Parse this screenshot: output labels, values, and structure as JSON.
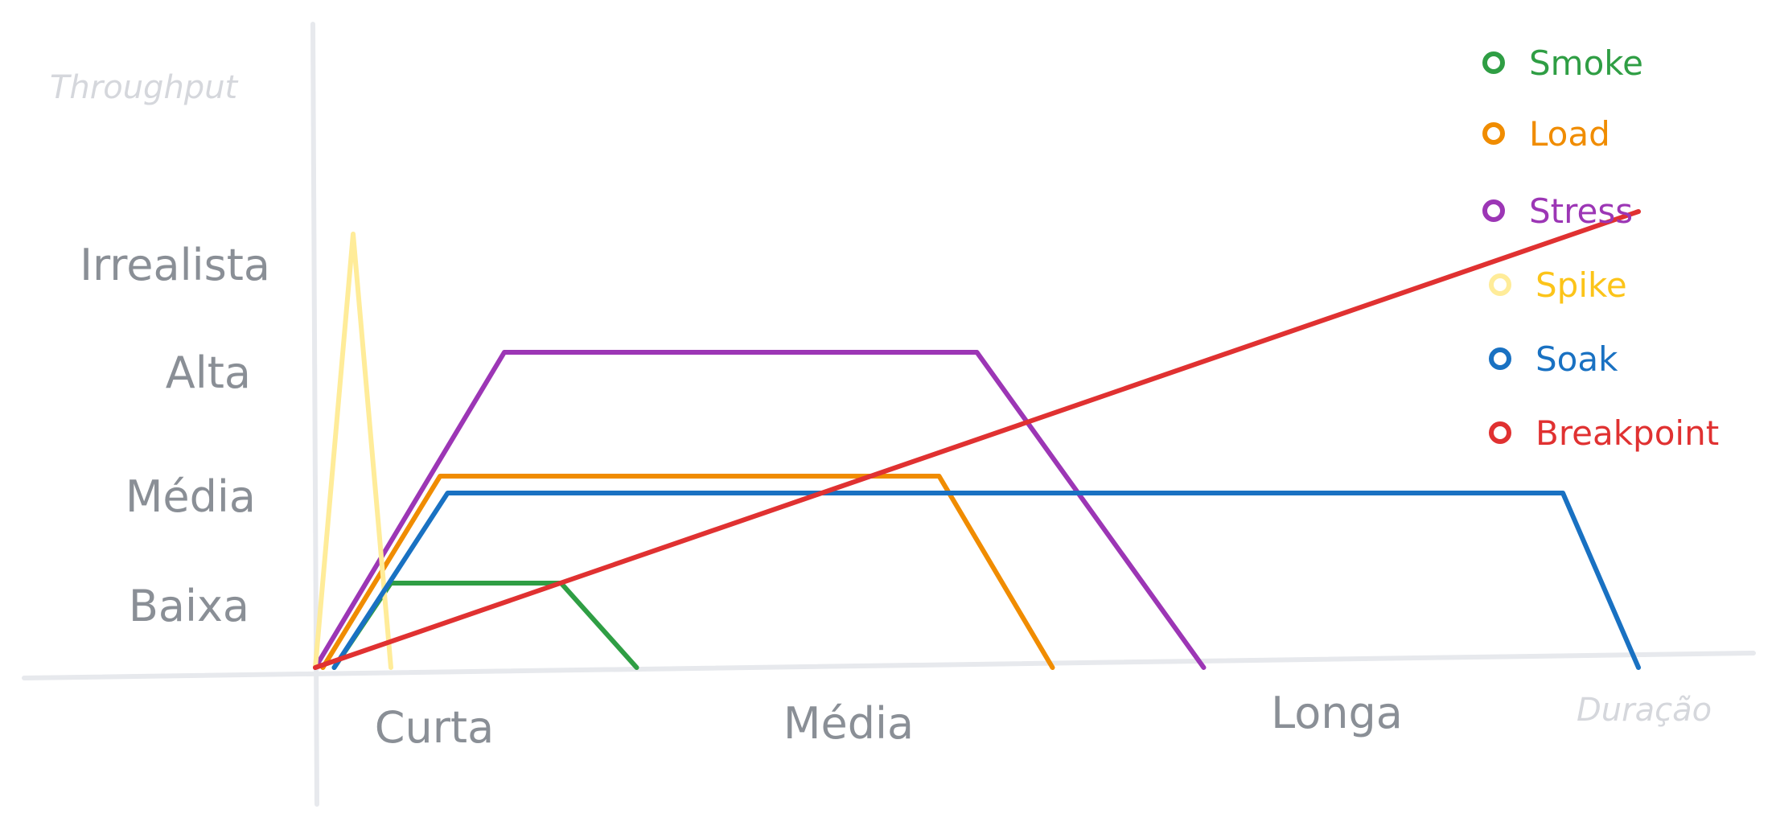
{
  "chart_data": {
    "type": "line",
    "xlabel": "Duração",
    "ylabel": "Throughput",
    "x_categories": [
      "Curta",
      "Média",
      "Longa"
    ],
    "y_categories": [
      "Baixa",
      "Média",
      "Alta",
      "Irrealista"
    ],
    "xlim": [
      0,
      3.6
    ],
    "ylim": [
      0,
      4.2
    ],
    "grid": false,
    "legend_position": "top-right",
    "series": [
      {
        "name": "Smoke",
        "color": "#2f9e44",
        "points": [
          [
            0.05,
            0
          ],
          [
            0.2,
            0.75
          ],
          [
            0.65,
            0.75
          ],
          [
            0.85,
            0
          ]
        ]
      },
      {
        "name": "Load",
        "color": "#f08c00",
        "points": [
          [
            0.02,
            0
          ],
          [
            0.33,
            1.7
          ],
          [
            1.65,
            1.7
          ],
          [
            1.95,
            0
          ]
        ]
      },
      {
        "name": "Stress",
        "color": "#9c36b5",
        "points": [
          [
            0.0,
            0
          ],
          [
            0.5,
            2.8
          ],
          [
            1.75,
            2.8
          ],
          [
            2.35,
            0
          ]
        ]
      },
      {
        "name": "Spike",
        "color": "#ffec99",
        "points": [
          [
            0.0,
            0
          ],
          [
            0.1,
            3.85
          ],
          [
            0.2,
            0
          ]
        ]
      },
      {
        "name": "Soak",
        "color": "#1971c2",
        "points": [
          [
            0.05,
            0
          ],
          [
            0.35,
            1.55
          ],
          [
            3.3,
            1.55
          ],
          [
            3.5,
            0
          ]
        ]
      },
      {
        "name": "Breakpoint",
        "color": "#e03131",
        "points": [
          [
            0.0,
            0
          ],
          [
            3.5,
            4.05
          ]
        ]
      }
    ]
  }
}
